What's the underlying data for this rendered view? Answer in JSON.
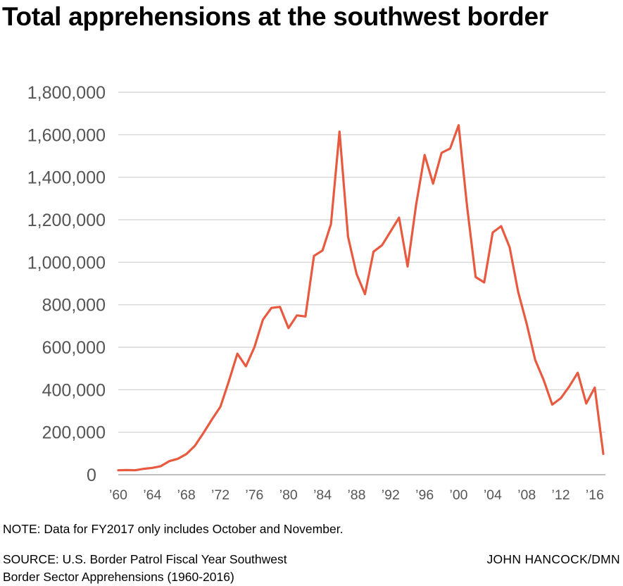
{
  "chart_data": {
    "type": "line",
    "title": "Total apprehensions at the southwest border",
    "xlabel": "",
    "ylabel": "",
    "xlim": [
      1960,
      2017
    ],
    "ylim": [
      0,
      1800000
    ],
    "grid": true,
    "y_ticks": [
      0,
      200000,
      400000,
      600000,
      800000,
      1000000,
      1200000,
      1400000,
      1600000,
      1800000
    ],
    "y_tick_labels": [
      "0",
      "200,000",
      "400,000",
      "600,000",
      "800,000",
      "1,000,000",
      "1,200,000",
      "1,400,000",
      "1,600,000",
      "1,800,000"
    ],
    "x_ticks": [
      1960,
      1964,
      1968,
      1972,
      1976,
      1980,
      1984,
      1988,
      1992,
      1996,
      2000,
      2004,
      2008,
      2012,
      2016
    ],
    "x_tick_labels": [
      "’60",
      "’64",
      "’68",
      "’72",
      "’76",
      "’80",
      "’84",
      "’88",
      "’92",
      "’96",
      "’00",
      "’04",
      "’08",
      "’12",
      "’16"
    ],
    "line_color": "#e85a40",
    "series": [
      {
        "x": [
          1960,
          1961,
          1962,
          1963,
          1964,
          1965,
          1966,
          1967,
          1968,
          1969,
          1970,
          1971,
          1972,
          1973,
          1974,
          1975,
          1976,
          1977,
          1978,
          1979,
          1980,
          1981,
          1982,
          1983,
          1984,
          1985,
          1986,
          1987,
          1988,
          1989,
          1990,
          1991,
          1992,
          1993,
          1994,
          1995,
          1996,
          1997,
          1998,
          1999,
          2000,
          2001,
          2002,
          2003,
          2004,
          2005,
          2006,
          2007,
          2008,
          2009,
          2010,
          2011,
          2012,
          2013,
          2014,
          2015,
          2016,
          2017
        ],
        "y": [
          21000,
          22000,
          21000,
          28000,
          32000,
          40000,
          64000,
          75000,
          97000,
          136000,
          196000,
          260000,
          320000,
          440000,
          570000,
          510000,
          600000,
          730000,
          785000,
          790000,
          690000,
          750000,
          745000,
          1030000,
          1055000,
          1180000,
          1615000,
          1120000,
          945000,
          850000,
          1050000,
          1080000,
          1145000,
          1210000,
          980000,
          1270000,
          1505000,
          1370000,
          1515000,
          1535000,
          1645000,
          1260000,
          930000,
          905000,
          1140000,
          1170000,
          1070000,
          860000,
          710000,
          540000,
          445000,
          330000,
          360000,
          415000,
          480000,
          335000,
          410000,
          98000
        ]
      }
    ]
  },
  "note": "NOTE: Data for FY2017 only includes October and November.",
  "source_line1": "SOURCE: U.S. Border Patrol Fiscal Year Southwest",
  "source_line2": "Border Sector Apprehensions (1960-2016)",
  "credit": "JOHN HANCOCK/DMN"
}
